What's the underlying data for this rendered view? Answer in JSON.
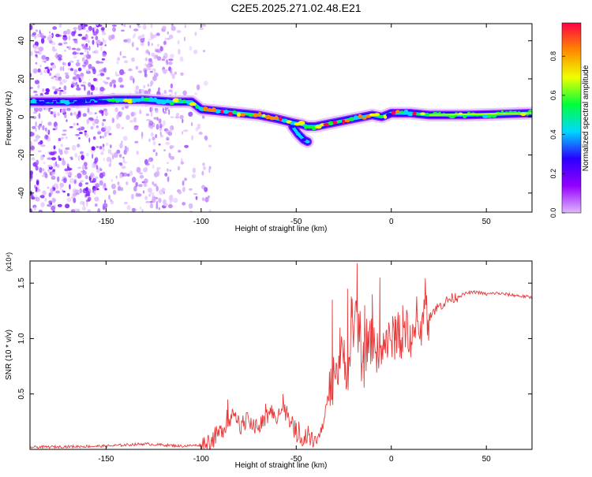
{
  "title": "C2E5.2025.271.02.48.E21",
  "chart_data": [
    {
      "type": "heatmap",
      "xlabel": "Height of straight line (km)",
      "ylabel": "Frequency (Hz)",
      "xlim": [
        -190,
        74
      ],
      "ylim": [
        -50,
        49
      ],
      "x_ticks": [
        -150,
        -100,
        -50,
        0,
        50
      ],
      "y_ticks": [
        -40,
        -20,
        0,
        20,
        40
      ],
      "grid": false,
      "colorbar": {
        "label": "Normalized spectral amplitude",
        "range": [
          0,
          0.97
        ],
        "ticks": [
          0.0,
          0.2,
          0.4,
          0.6,
          0.8
        ],
        "colormap": [
          "#e0b8ff",
          "#9400ff",
          "#2a00ff",
          "#00d8ff",
          "#00ff3a",
          "#f0ff00",
          "#ff8800",
          "#ff0044"
        ]
      },
      "ridge": {
        "x": [
          -190,
          -165,
          -145,
          -130,
          -115,
          -105,
          -100,
          -90,
          -80,
          -70,
          -60,
          -52,
          -47,
          -44,
          -40,
          -35,
          -30,
          -25,
          -20,
          -15,
          -10,
          -5,
          0,
          5,
          10,
          20,
          40,
          74
        ],
        "y": [
          8,
          8,
          9,
          9,
          8,
          8,
          4,
          3,
          2,
          1,
          -1,
          -3,
          -4,
          -5,
          -5,
          -4,
          -3,
          -2,
          -1,
          0,
          1,
          0,
          2,
          2,
          2,
          1,
          1,
          2
        ]
      },
      "ridge_branch": {
        "x": [
          -52,
          -49,
          -46,
          -44
        ],
        "y": [
          -5,
          -9,
          -12,
          -13
        ]
      }
    },
    {
      "type": "line",
      "xlabel": "Height of straight line (km)",
      "ylabel": "SNR (10 * v/v)",
      "y_multiplier_label": "(x10⁴)",
      "xlim": [
        -190,
        74
      ],
      "ylim": [
        0,
        1.7
      ],
      "x_ticks": [
        -150,
        -100,
        -50,
        0,
        50
      ],
      "y_ticks": [
        0.5,
        1.0,
        1.5
      ],
      "y_tick_labels": [
        "0.5",
        "1.0",
        "1.5"
      ],
      "grid": false,
      "color": "#e83a3a",
      "series": [
        {
          "x": [
            -190,
            -150,
            -130,
            -110,
            -100,
            -95,
            -90,
            -85,
            -80,
            -75,
            -70,
            -65,
            -60,
            -55,
            -50,
            -46,
            -42,
            -40,
            -37,
            -35,
            -33,
            -31,
            -29,
            -27,
            -25,
            -23,
            -21,
            -19,
            -17,
            -15,
            -13,
            -11,
            -9,
            -7,
            -5,
            -3,
            -1,
            1,
            3,
            5,
            7,
            9,
            11,
            13,
            15,
            18,
            22,
            26,
            30,
            35,
            40,
            45,
            50,
            55,
            60,
            65,
            70,
            74
          ],
          "y": [
            0.02,
            0.03,
            0.05,
            0.03,
            0.04,
            0.08,
            0.15,
            0.3,
            0.22,
            0.25,
            0.2,
            0.3,
            0.32,
            0.35,
            0.15,
            0.1,
            0.08,
            0.07,
            0.15,
            0.3,
            0.5,
            0.6,
            0.7,
            0.8,
            0.85,
            0.7,
            0.9,
            1.2,
            1.0,
            0.7,
            0.9,
            0.95,
            1.05,
            0.8,
            0.9,
            1.0,
            0.95,
            1.0,
            1.05,
            0.95,
            1.0,
            1.1,
            1.0,
            1.05,
            1.1,
            1.15,
            1.25,
            1.3,
            1.35,
            1.38,
            1.41,
            1.42,
            1.4,
            1.41,
            1.4,
            1.39,
            1.38,
            1.37
          ],
          "spikes": [
            {
              "x": -86,
              "y": 0.45
            },
            {
              "x": -57,
              "y": 0.5
            },
            {
              "x": -31,
              "y": 1.35
            },
            {
              "x": -27,
              "y": 1.1
            },
            {
              "x": -23,
              "y": 1.45
            },
            {
              "x": -21,
              "y": 1.38
            },
            {
              "x": -18,
              "y": 1.68
            },
            {
              "x": -14,
              "y": 1.3
            },
            {
              "x": -10,
              "y": 1.4
            },
            {
              "x": -6,
              "y": 1.55
            },
            {
              "x": 2,
              "y": 1.2
            },
            {
              "x": 6,
              "y": 1.3
            },
            {
              "x": 10,
              "y": 1.12
            }
          ]
        }
      ]
    }
  ]
}
